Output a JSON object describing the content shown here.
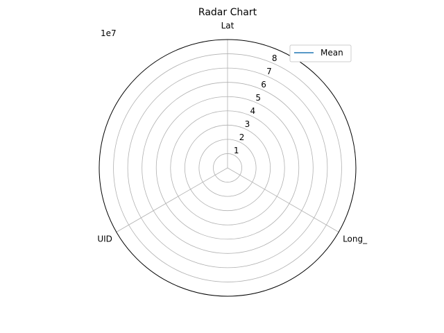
{
  "chart_data": {
    "type": "radar",
    "title": "Radar Chart",
    "offset_label": "1e7",
    "categories": [
      "Lat",
      "Long_",
      "UID"
    ],
    "rlim": [
      0,
      9
    ],
    "rticks": [
      1,
      2,
      3,
      4,
      5,
      6,
      7,
      8
    ],
    "rtick_labels": [
      "1",
      "2",
      "3",
      "4",
      "5",
      "6",
      "7",
      "8"
    ],
    "grid": true,
    "legend_position": "top-right",
    "series": [
      {
        "name": "Mean",
        "color": "#1f77b4",
        "values": [
          0,
          0,
          0
        ]
      }
    ]
  }
}
